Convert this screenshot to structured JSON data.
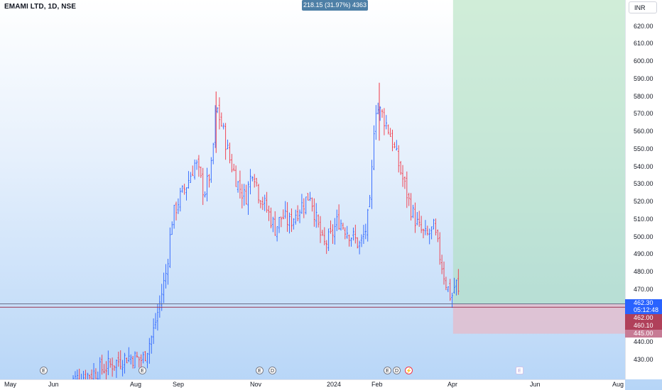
{
  "symbol": "EMAMI LTD, 1D, NSE",
  "measure_label": "218.15 (31.97%) 4363",
  "currency": "INR",
  "price_tags": {
    "last": "462.30",
    "countdown": "05:12:48",
    "entry": "462.00",
    "stop_line": "460.10",
    "stop": "445.00"
  },
  "colors": {
    "up": "#2962ff",
    "down": "#f23645",
    "target_zone": "#a9dfb8",
    "stop_zone": "#e8b8c6",
    "tag_blue": "#2962ff",
    "tag_red": "#b0405a"
  },
  "events": [
    {
      "label": "E",
      "kind": "earnings"
    },
    {
      "label": "E",
      "kind": "earnings"
    },
    {
      "label": "E",
      "kind": "earnings"
    },
    {
      "label": "D",
      "kind": "dividend"
    },
    {
      "label": "E",
      "kind": "earnings"
    },
    {
      "label": "D",
      "kind": "dividend"
    },
    {
      "label": "⚡",
      "kind": "split"
    },
    {
      "label": "E",
      "kind": "earnings-upcoming"
    }
  ],
  "chart_data": {
    "type": "candlestick",
    "title": "EMAMI LTD, 1D, NSE",
    "x_ticks": [
      "May",
      "Jun",
      "Aug",
      "Sep",
      "Nov",
      "2024",
      "Feb",
      "Apr",
      "Jun",
      "Aug"
    ],
    "y_ticks": [
      430,
      440,
      450,
      460,
      470,
      480,
      490,
      500,
      510,
      520,
      530,
      540,
      550,
      560,
      570,
      580,
      590,
      600,
      610,
      620
    ],
    "ylim": [
      424,
      640
    ],
    "grid": false,
    "series_path": [
      [
        "2023-06-05",
        418
      ],
      [
        "2023-06-20",
        422
      ],
      [
        "2023-07-05",
        428
      ],
      [
        "2023-07-15",
        432
      ],
      [
        "2023-07-25",
        430
      ],
      [
        "2023-08-01",
        445
      ],
      [
        "2023-08-05",
        460
      ],
      [
        "2023-08-10",
        480
      ],
      [
        "2023-08-14",
        510
      ],
      [
        "2023-08-18",
        520
      ],
      [
        "2023-08-24",
        530
      ],
      [
        "2023-08-30",
        543
      ],
      [
        "2023-09-05",
        525
      ],
      [
        "2023-09-10",
        540
      ],
      [
        "2023-09-13",
        575
      ],
      [
        "2023-09-18",
        560
      ],
      [
        "2023-09-22",
        545
      ],
      [
        "2023-09-28",
        530
      ],
      [
        "2023-10-03",
        522
      ],
      [
        "2023-10-08",
        540
      ],
      [
        "2023-10-12",
        525
      ],
      [
        "2023-10-18",
        515
      ],
      [
        "2023-10-23",
        505
      ],
      [
        "2023-10-28",
        512
      ],
      [
        "2023-11-02",
        508
      ],
      [
        "2023-11-07",
        515
      ],
      [
        "2023-11-12",
        520
      ],
      [
        "2023-11-16",
        525
      ],
      [
        "2023-11-20",
        510
      ],
      [
        "2023-11-25",
        495
      ],
      [
        "2023-11-30",
        500
      ],
      [
        "2023-12-05",
        510
      ],
      [
        "2023-12-10",
        505
      ],
      [
        "2023-12-15",
        500
      ],
      [
        "2023-12-20",
        495
      ],
      [
        "2023-12-24",
        505
      ],
      [
        "2023-12-27",
        520
      ],
      [
        "2023-12-30",
        575
      ],
      [
        "2024-01-04",
        570
      ],
      [
        "2024-01-09",
        560
      ],
      [
        "2024-01-14",
        545
      ],
      [
        "2024-01-19",
        530
      ],
      [
        "2024-01-24",
        515
      ],
      [
        "2024-01-29",
        505
      ],
      [
        "2024-02-03",
        500
      ],
      [
        "2024-02-08",
        505
      ],
      [
        "2024-02-12",
        490
      ],
      [
        "2024-02-16",
        475
      ],
      [
        "2024-02-20",
        465
      ],
      [
        "2024-02-23",
        475
      ],
      [
        "2024-02-26",
        462.3
      ]
    ],
    "notable": {
      "high": 588,
      "high_date": "2024-01-02",
      "swing_high": 583,
      "swing_high_date": "2023-09-13"
    },
    "last_price": 462.3,
    "long_position": {
      "entry": 462.0,
      "stop": 445.0,
      "stop_line": 460.1,
      "target_zone_top": 640
    }
  }
}
